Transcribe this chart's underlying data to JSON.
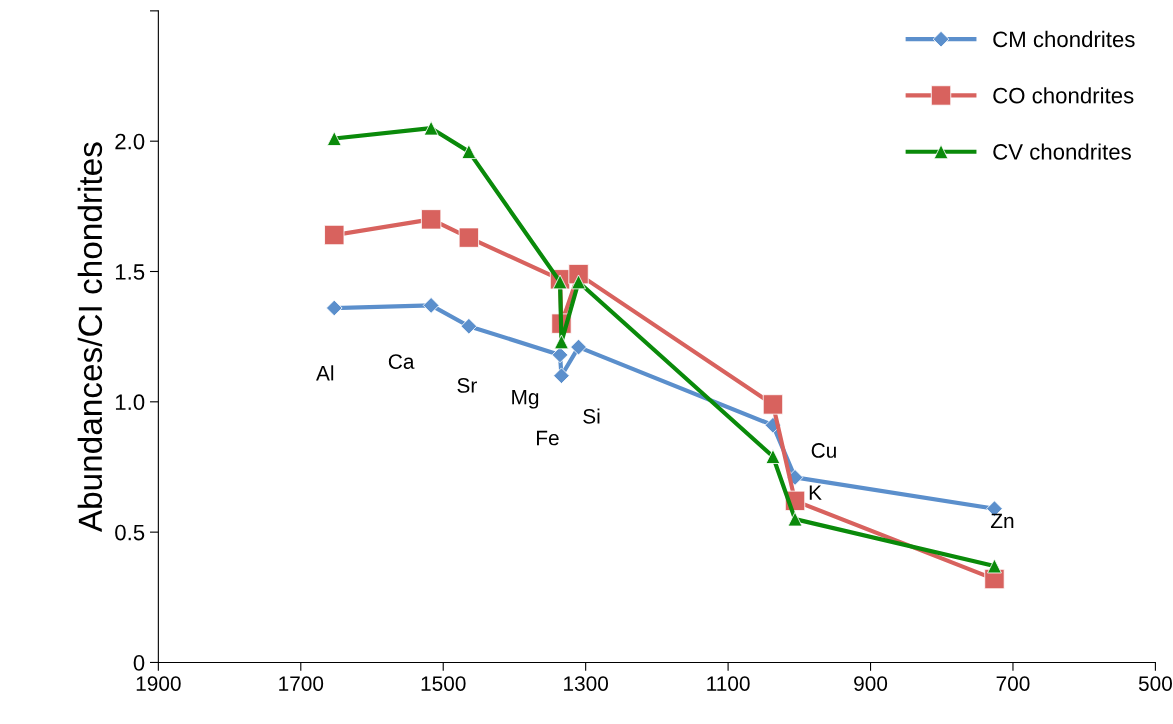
{
  "chart_data": {
    "type": "line",
    "ylabel": "Abundances/CI chondrites",
    "x": [
      1653,
      1517,
      1464,
      1336,
      1334,
      1310,
      1037,
      1006,
      726
    ],
    "series": [
      {
        "name": "CM chondrites",
        "color": "#5b8fcc",
        "marker": "diamond",
        "values": [
          1.36,
          1.37,
          1.29,
          1.18,
          1.1,
          1.21,
          0.91,
          0.71,
          0.59
        ]
      },
      {
        "name": "CO chondrites",
        "color": "#d8625e",
        "marker": "square",
        "values": [
          1.64,
          1.7,
          1.63,
          1.47,
          1.3,
          1.49,
          0.99,
          0.62,
          0.32
        ]
      },
      {
        "name": "CV chondrites",
        "color": "#0a8a0a",
        "marker": "triangle",
        "values": [
          2.01,
          2.05,
          1.96,
          1.46,
          1.23,
          1.46,
          0.79,
          0.55,
          0.37
        ]
      }
    ],
    "annotations": [
      {
        "text": "Al",
        "x": 1653,
        "y": 1.36
      },
      {
        "text": "Ca",
        "x": 1517,
        "y": 1.37
      },
      {
        "text": "Sr",
        "x": 1464,
        "y": 1.29
      },
      {
        "text": "Mg",
        "x": 1336,
        "y": 1.18
      },
      {
        "text": "Fe",
        "x": 1334,
        "y": 1.1
      },
      {
        "text": "Si",
        "x": 1310,
        "y": 1.21
      },
      {
        "text": "Cu",
        "x": 1037,
        "y": 0.91
      },
      {
        "text": "K",
        "x": 1006,
        "y": 0.71
      },
      {
        "text": "Zn",
        "x": 726,
        "y": 0.59
      }
    ],
    "xlim": [
      1900,
      500
    ],
    "xticks": [
      1900,
      1700,
      1500,
      1300,
      1100,
      900,
      700,
      500
    ],
    "ylim": [
      0,
      2.5
    ],
    "yticks": [
      0,
      {
        "value": 0.5,
        "label": "0.5"
      },
      {
        "value": 1.0,
        "label": "1.0"
      },
      {
        "value": 1.5,
        "label": "1.5"
      },
      {
        "value": 2.0,
        "label": "2.0"
      },
      {
        "value": 2.5,
        "label": null
      }
    ],
    "grid": false,
    "legend": "top right",
    "line_style": "solid"
  }
}
